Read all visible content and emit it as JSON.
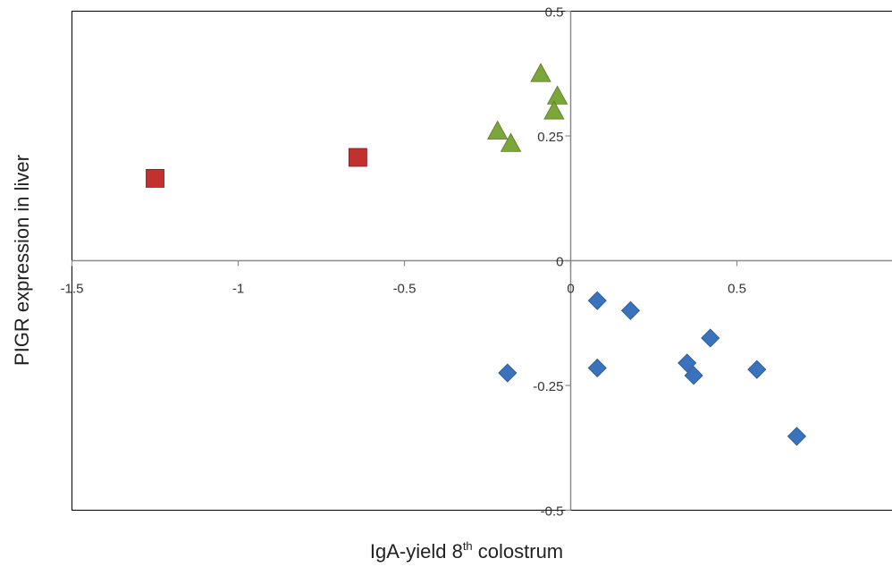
{
  "chart_data": {
    "type": "scatter",
    "xlabel_main": "IgA-yield 8",
    "xlabel_sup": "th",
    "xlabel_tail": " colostrum",
    "ylabel": "PIGR expression in liver",
    "xlim": [
      -1.5,
      1.0
    ],
    "ylim": [
      -0.5,
      0.5
    ],
    "x_ticks": [
      -1.5,
      -1,
      -0.5,
      0,
      0.5
    ],
    "x_tick_labels": [
      "-1.5",
      "-1",
      "-0.5",
      "0",
      "0.5"
    ],
    "y_ticks": [
      0.5,
      0.25,
      0,
      -0.25,
      -0.5
    ],
    "y_tick_labels": [
      "0.5",
      "0.25",
      "0",
      "-0.25",
      "-0.5"
    ],
    "grid": false,
    "series": [
      {
        "marker": "square",
        "color": "#c0312f",
        "points": [
          [
            -1.25,
            0.165
          ],
          [
            -0.64,
            0.207
          ]
        ]
      },
      {
        "marker": "triangle",
        "color": "#7aa63a",
        "points": [
          [
            -0.09,
            0.375
          ],
          [
            -0.04,
            0.33
          ],
          [
            -0.05,
            0.3
          ],
          [
            -0.22,
            0.26
          ],
          [
            -0.18,
            0.235
          ]
        ]
      },
      {
        "marker": "diamond",
        "color": "#3a72be",
        "points": [
          [
            0.08,
            -0.08
          ],
          [
            0.18,
            -0.1
          ],
          [
            0.42,
            -0.155
          ],
          [
            0.35,
            -0.205
          ],
          [
            0.08,
            -0.215
          ],
          [
            0.37,
            -0.23
          ],
          [
            0.56,
            -0.218
          ],
          [
            -0.19,
            -0.225
          ],
          [
            0.68,
            -0.352
          ]
        ]
      }
    ]
  }
}
